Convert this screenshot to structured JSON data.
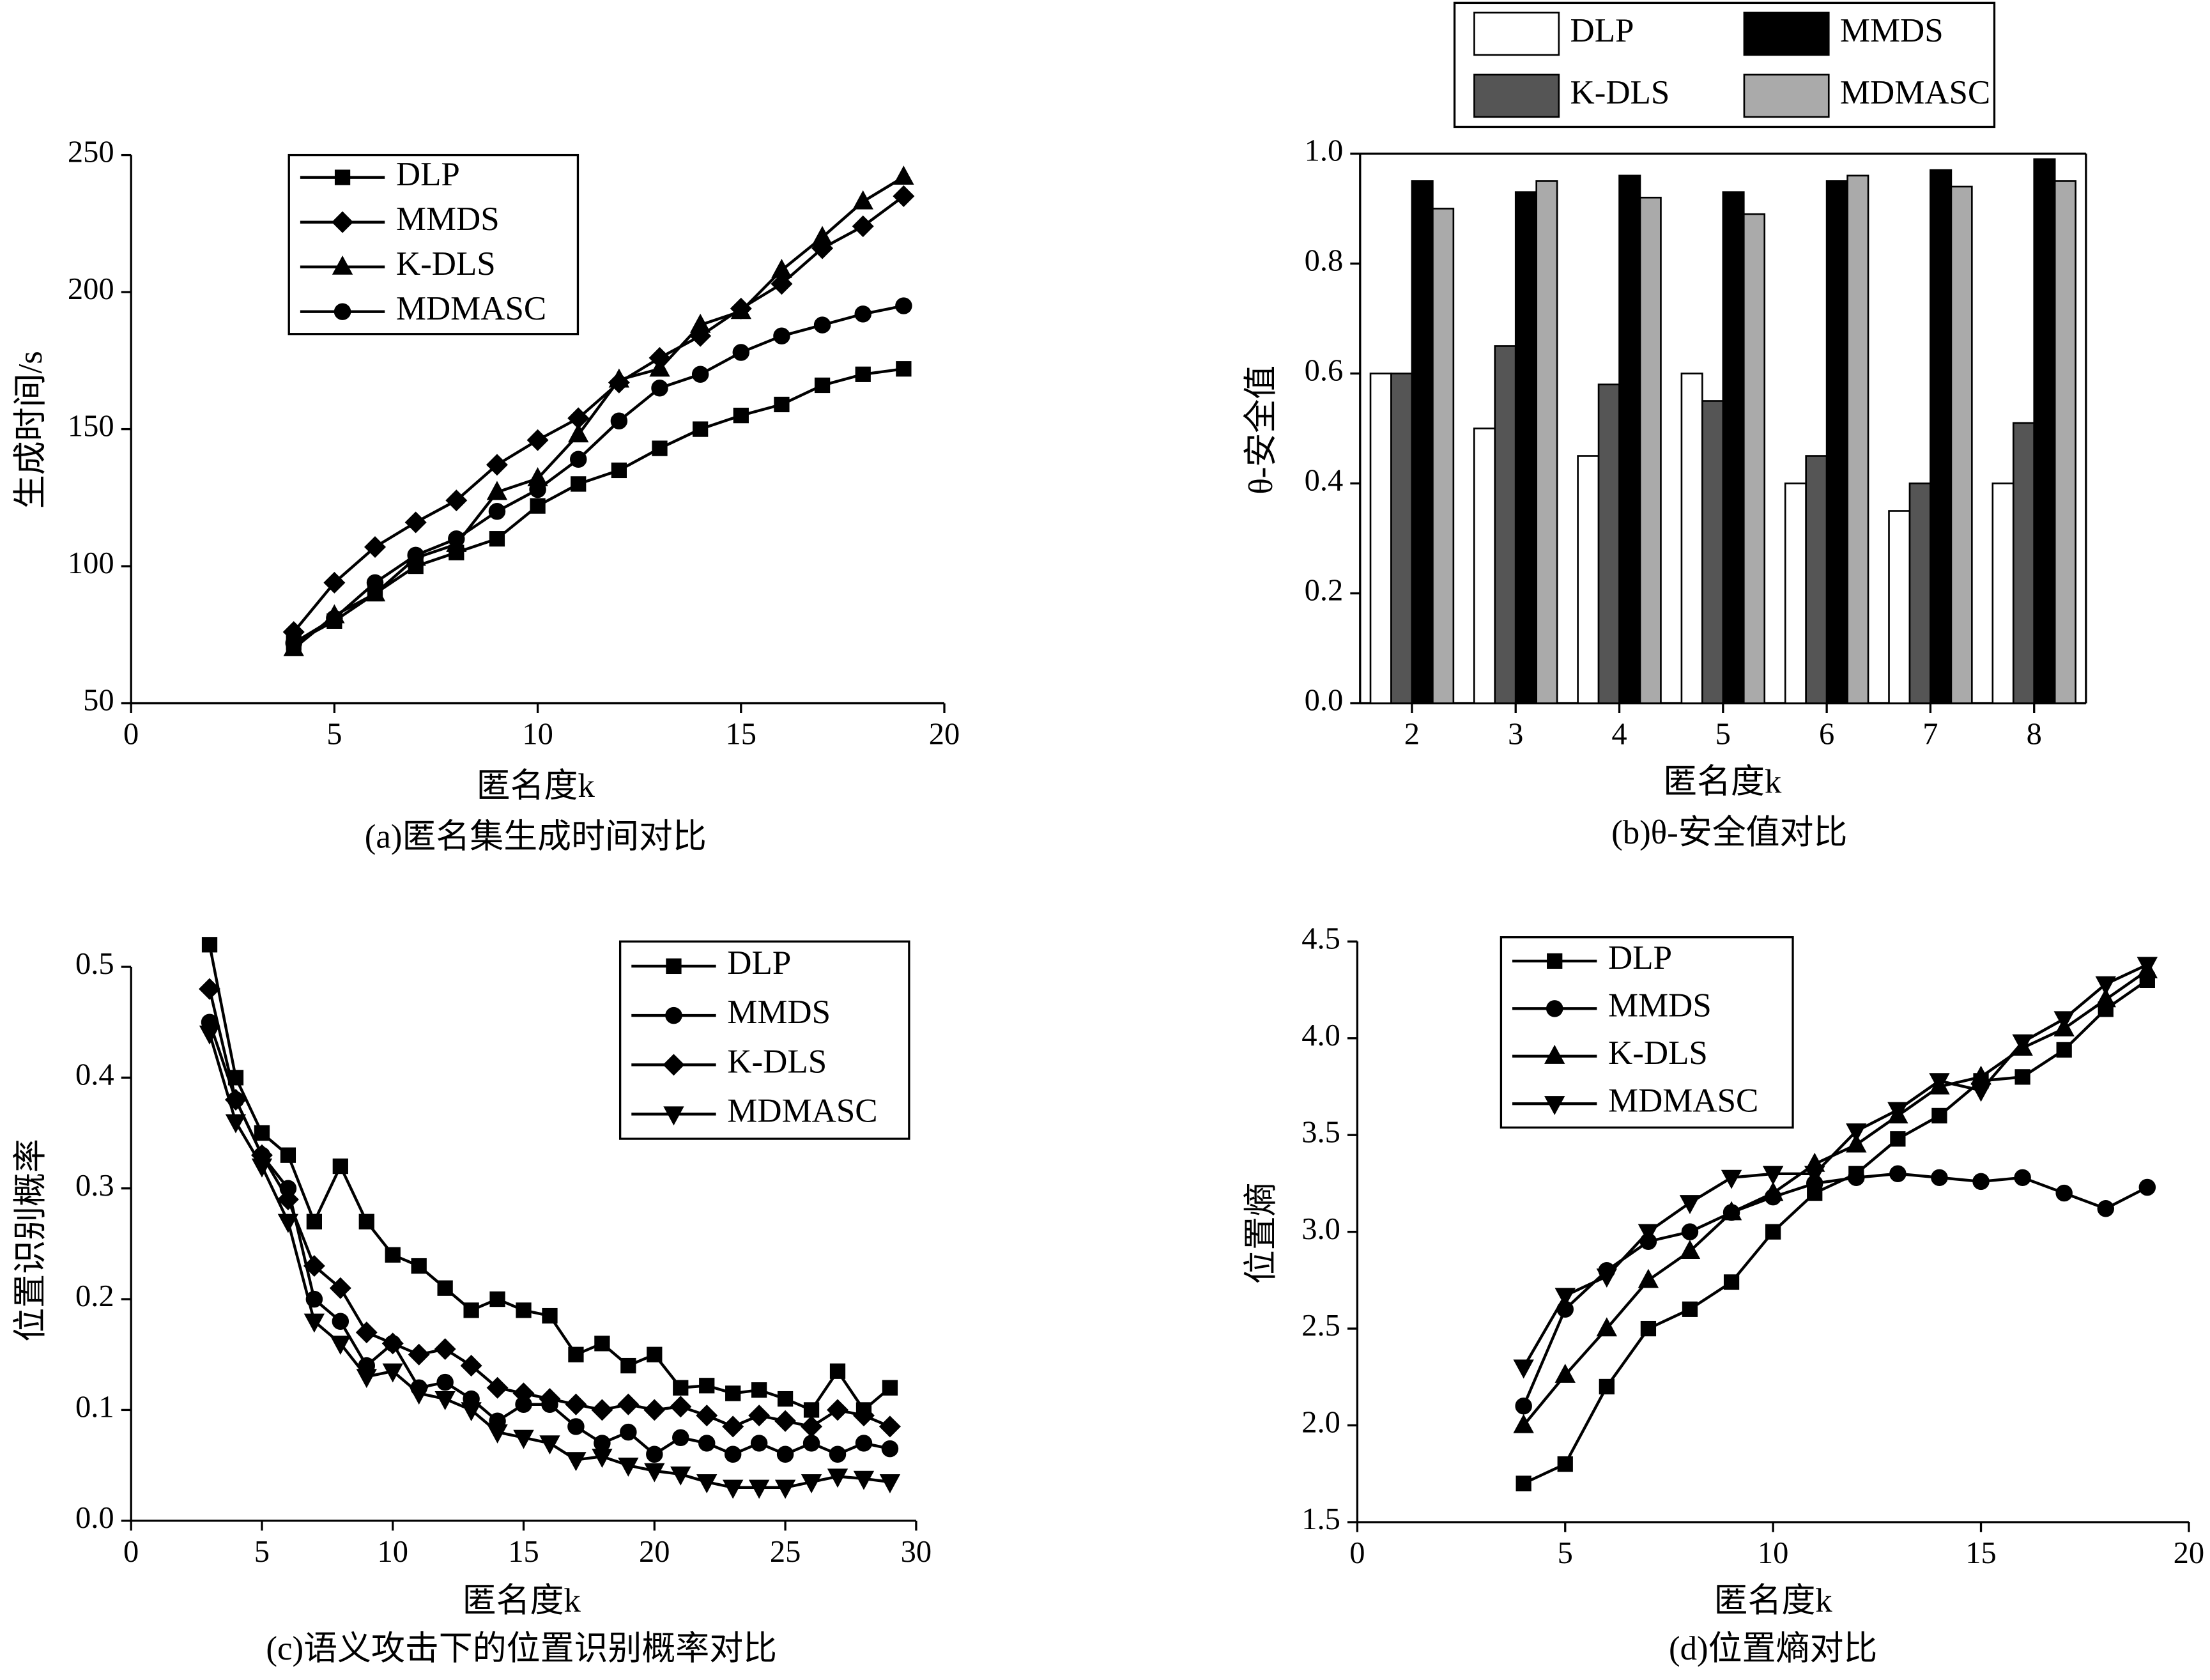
{
  "chart_data": [
    {
      "type": "line",
      "title": "(a)匿名集生成时间对比",
      "xlabel": "匿名度k",
      "ylabel": "生成时间/s",
      "x": [
        4,
        5,
        6,
        7,
        8,
        9,
        10,
        11,
        12,
        13,
        14,
        15,
        16,
        17,
        18,
        19
      ],
      "xlim": [
        0,
        20
      ],
      "xticks": [
        0,
        5,
        10,
        15,
        20
      ],
      "ylim": [
        50,
        250
      ],
      "yticks": [
        50,
        100,
        150,
        200,
        250
      ],
      "series": [
        {
          "name": "DLP",
          "color": "#000000",
          "marker": "square",
          "values": [
            72,
            80,
            90,
            100,
            105,
            110,
            122,
            130,
            135,
            143,
            150,
            155,
            159,
            166,
            170,
            172
          ]
        },
        {
          "name": "MMDS",
          "color": "#000000",
          "marker": "diamond",
          "values": [
            76,
            94,
            107,
            116,
            124,
            137,
            146,
            154,
            167,
            176,
            184,
            194,
            203,
            216,
            224,
            235
          ]
        },
        {
          "name": "K-DLS",
          "color": "#000000",
          "marker": "triangle",
          "values": [
            70,
            82,
            90,
            103,
            108,
            127,
            132,
            148,
            168,
            172,
            188,
            193,
            208,
            220,
            233,
            242
          ]
        },
        {
          "name": "MDMASC",
          "color": "#000000",
          "marker": "circle",
          "values": [
            72,
            81,
            94,
            104,
            110,
            120,
            128,
            139,
            153,
            165,
            170,
            178,
            184,
            188,
            192,
            195
          ]
        }
      ]
    },
    {
      "type": "bar",
      "title": "(b)θ-安全值对比",
      "xlabel": "匿名度k",
      "ylabel": "θ-安全值",
      "categories": [
        "2",
        "3",
        "4",
        "5",
        "6",
        "7",
        "8"
      ],
      "ylim": [
        0,
        1
      ],
      "yticks": [
        {
          "value": 0,
          "label": "0.0"
        },
        0.2,
        0.4,
        0.6,
        0.8,
        {
          "value": 1,
          "label": "1.0"
        }
      ],
      "series": [
        {
          "name": "DLP",
          "color": "#ffffff",
          "values": [
            0.6,
            0.5,
            0.45,
            0.6,
            0.4,
            0.35,
            0.4
          ]
        },
        {
          "name": "K-DLS",
          "color": "#555555",
          "values": [
            0.6,
            0.65,
            0.58,
            0.55,
            0.45,
            0.4,
            0.51
          ]
        },
        {
          "name": "MMDS",
          "color": "#000000",
          "values": [
            0.95,
            0.93,
            0.96,
            0.93,
            0.95,
            0.97,
            0.99
          ]
        },
        {
          "name": "MDMASC",
          "color": "#aaaaaa",
          "values": [
            0.9,
            0.95,
            0.92,
            0.89,
            0.96,
            0.94,
            0.95
          ]
        }
      ]
    },
    {
      "type": "line",
      "title": "(c)语义攻击下的位置识别概率对比",
      "xlabel": "匿名度k",
      "ylabel": "位置识别概率",
      "x": [
        3,
        4,
        5,
        6,
        7,
        8,
        9,
        10,
        11,
        12,
        13,
        14,
        15,
        16,
        17,
        18,
        19,
        20,
        21,
        22,
        23,
        24,
        25,
        26,
        27,
        28,
        29
      ],
      "xlim": [
        0,
        30
      ],
      "xticks": [
        0,
        5,
        10,
        15,
        20,
        25,
        30
      ],
      "ylim": [
        0,
        0.5
      ],
      "yticks": [
        {
          "value": 0,
          "label": "0.0"
        },
        0.1,
        0.2,
        0.3,
        0.4,
        0.5
      ],
      "series": [
        {
          "name": "DLP",
          "color": "#000000",
          "marker": "square",
          "values": [
            0.52,
            0.4,
            0.35,
            0.33,
            0.27,
            0.32,
            0.27,
            0.24,
            0.23,
            0.21,
            0.19,
            0.2,
            0.19,
            0.185,
            0.15,
            0.16,
            0.14,
            0.15,
            0.12,
            0.122,
            0.115,
            0.118,
            0.11,
            0.1,
            0.135,
            0.1,
            0.12
          ]
        },
        {
          "name": "MMDS",
          "color": "#000000",
          "marker": "circle",
          "values": [
            0.45,
            0.38,
            0.33,
            0.3,
            0.2,
            0.18,
            0.14,
            0.16,
            0.12,
            0.125,
            0.11,
            0.09,
            0.105,
            0.105,
            0.085,
            0.07,
            0.08,
            0.06,
            0.075,
            0.07,
            0.06,
            0.07,
            0.06,
            0.07,
            0.06,
            0.07,
            0.065
          ]
        },
        {
          "name": "K-DLS",
          "color": "#000000",
          "marker": "diamond",
          "values": [
            0.48,
            0.38,
            0.33,
            0.29,
            0.23,
            0.21,
            0.17,
            0.16,
            0.15,
            0.155,
            0.14,
            0.12,
            0.115,
            0.11,
            0.105,
            0.1,
            0.105,
            0.1,
            0.103,
            0.095,
            0.085,
            0.095,
            0.09,
            0.085,
            0.1,
            0.095,
            0.085
          ]
        },
        {
          "name": "MDMASC",
          "color": "#000000",
          "marker": "down-triangle",
          "values": [
            0.44,
            0.36,
            0.32,
            0.27,
            0.18,
            0.16,
            0.13,
            0.135,
            0.115,
            0.11,
            0.1,
            0.08,
            0.075,
            0.07,
            0.055,
            0.058,
            0.05,
            0.045,
            0.042,
            0.035,
            0.03,
            0.03,
            0.03,
            0.035,
            0.04,
            0.038,
            0.035
          ]
        }
      ]
    },
    {
      "type": "line",
      "title": "(d)位置熵对比",
      "xlabel": "匿名度k",
      "ylabel": "位置熵",
      "x": [
        4,
        5,
        6,
        7,
        8,
        9,
        10,
        11,
        12,
        13,
        14,
        15,
        16,
        17,
        18,
        19
      ],
      "xlim": [
        0,
        20
      ],
      "xticks": [
        0,
        5,
        10,
        15,
        20
      ],
      "ylim": [
        1.5,
        4.5
      ],
      "yticks": [
        1.5,
        {
          "value": 2,
          "label": "2.0"
        },
        2.5,
        {
          "value": 3,
          "label": "3.0"
        },
        3.5,
        {
          "value": 4,
          "label": "4.0"
        },
        4.5
      ],
      "series": [
        {
          "name": "DLP",
          "color": "#000000",
          "marker": "square",
          "values": [
            1.7,
            1.8,
            2.2,
            2.5,
            2.6,
            2.74,
            3.0,
            3.2,
            3.3,
            3.48,
            3.6,
            3.78,
            3.8,
            3.94,
            4.15,
            4.3
          ]
        },
        {
          "name": "MMDS",
          "color": "#000000",
          "marker": "circle",
          "values": [
            2.1,
            2.6,
            2.8,
            2.95,
            3.0,
            3.1,
            3.18,
            3.25,
            3.28,
            3.3,
            3.28,
            3.26,
            3.28,
            3.2,
            3.12,
            3.23
          ]
        },
        {
          "name": "K-DLS",
          "color": "#000000",
          "marker": "triangle",
          "values": [
            2.0,
            2.26,
            2.5,
            2.75,
            2.9,
            3.1,
            3.2,
            3.35,
            3.45,
            3.6,
            3.75,
            3.8,
            3.95,
            4.05,
            4.2,
            4.35
          ]
        },
        {
          "name": "MDMASC",
          "color": "#000000",
          "marker": "down-triangle",
          "values": [
            2.3,
            2.67,
            2.77,
            3.0,
            3.15,
            3.28,
            3.3,
            3.3,
            3.52,
            3.63,
            3.78,
            3.73,
            3.98,
            4.1,
            4.28,
            4.38
          ]
        }
      ]
    }
  ]
}
